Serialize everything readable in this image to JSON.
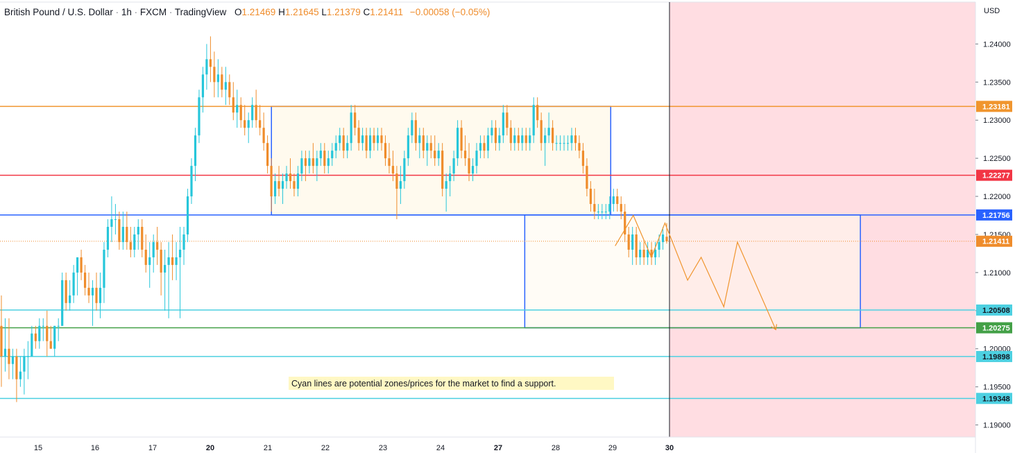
{
  "header": {
    "symbol": "British Pound / U.S. Dollar",
    "interval": "1h",
    "exchange": "FXCM",
    "platform": "TradingView",
    "open_label": "O",
    "open": "1.21469",
    "high_label": "H",
    "high": "1.21645",
    "low_label": "L",
    "low": "1.21379",
    "close_label": "C",
    "close": "1.21411",
    "change": "−0.00058 (−0.05%)"
  },
  "annotation": "Cyan lines are potential zones/prices for the market to find a support.",
  "colors": {
    "up": "#26c6da",
    "down": "#ef8c2b",
    "orange_level": "#f0952e",
    "red_level": "#f23645",
    "blue_level": "#2962ff",
    "cyan_level": "#4dd0e1",
    "green_level": "#43a047",
    "future_zone": "#ffdde2",
    "box_fill": "#fffaee"
  },
  "chart_data": {
    "type": "candlestick",
    "title": "British Pound / U.S. Dollar · 1h · FXCM",
    "currency": "USD",
    "ylim": [
      1.1875,
      1.2455
    ],
    "y_ticks": [
      "1.24000",
      "1.23500",
      "1.23000",
      "1.22500",
      "1.22000",
      "1.21500",
      "1.21000",
      "1.20500",
      "1.20000",
      "1.19500",
      "1.19000"
    ],
    "x_ticks": [
      {
        "label": "15",
        "bold": false
      },
      {
        "label": "16",
        "bold": false
      },
      {
        "label": "17",
        "bold": false
      },
      {
        "label": "20",
        "bold": true
      },
      {
        "label": "21",
        "bold": false
      },
      {
        "label": "22",
        "bold": false
      },
      {
        "label": "23",
        "bold": false
      },
      {
        "label": "24",
        "bold": false
      },
      {
        "label": "27",
        "bold": true
      },
      {
        "label": "28",
        "bold": false
      },
      {
        "label": "29",
        "bold": false
      },
      {
        "label": "30",
        "bold": true
      }
    ],
    "levels": [
      {
        "price": 1.23181,
        "label": "1.23181",
        "kind": "orange"
      },
      {
        "price": 1.22277,
        "label": "1.22277",
        "kind": "red"
      },
      {
        "price": 1.21756,
        "label": "1.21756",
        "kind": "blue"
      },
      {
        "price": 1.21411,
        "label": "1.21411",
        "kind": "current"
      },
      {
        "price": 1.20508,
        "label": "1.20508",
        "kind": "cyan"
      },
      {
        "price": 1.20275,
        "label": "1.20275",
        "kind": "green"
      },
      {
        "price": 1.19898,
        "label": "1.19898",
        "kind": "cyan"
      },
      {
        "price": 1.19348,
        "label": "1.19348",
        "kind": "cyan"
      }
    ],
    "candles": [
      [
        1.203,
        1.207,
        1.195,
        1.199
      ],
      [
        1.199,
        1.204,
        1.197,
        1.2
      ],
      [
        1.2,
        1.204,
        1.196,
        1.198
      ],
      [
        1.198,
        1.2,
        1.196,
        1.199
      ],
      [
        1.199,
        1.2,
        1.193,
        1.196
      ],
      [
        1.196,
        1.199,
        1.195,
        1.197
      ],
      [
        1.197,
        1.2,
        1.194,
        1.199
      ],
      [
        1.199,
        1.201,
        1.196,
        1.199
      ],
      [
        1.199,
        1.203,
        1.199,
        1.202
      ],
      [
        1.202,
        1.203,
        1.2,
        1.201
      ],
      [
        1.201,
        1.204,
        1.2,
        1.203
      ],
      [
        1.203,
        1.204,
        1.201,
        1.203
      ],
      [
        1.203,
        1.205,
        1.199,
        1.201
      ],
      [
        1.201,
        1.203,
        1.2,
        1.2
      ],
      [
        1.2,
        1.203,
        1.199,
        1.203
      ],
      [
        1.203,
        1.204,
        1.201,
        1.203
      ],
      [
        1.203,
        1.21,
        1.203,
        1.209
      ],
      [
        1.209,
        1.21,
        1.205,
        1.206
      ],
      [
        1.206,
        1.209,
        1.205,
        1.207
      ],
      [
        1.207,
        1.211,
        1.206,
        1.21
      ],
      [
        1.21,
        1.212,
        1.207,
        1.212
      ],
      [
        1.212,
        1.213,
        1.209,
        1.21
      ],
      [
        1.21,
        1.211,
        1.207,
        1.208
      ],
      [
        1.208,
        1.21,
        1.206,
        1.207
      ],
      [
        1.207,
        1.209,
        1.203,
        1.208
      ],
      [
        1.208,
        1.21,
        1.205,
        1.206
      ],
      [
        1.206,
        1.21,
        1.204,
        1.208
      ],
      [
        1.208,
        1.214,
        1.206,
        1.213
      ],
      [
        1.213,
        1.217,
        1.212,
        1.216
      ],
      [
        1.216,
        1.22,
        1.214,
        1.217
      ],
      [
        1.217,
        1.219,
        1.215,
        1.217
      ],
      [
        1.217,
        1.218,
        1.213,
        1.214
      ],
      [
        1.214,
        1.218,
        1.213,
        1.216
      ],
      [
        1.216,
        1.218,
        1.213,
        1.214
      ],
      [
        1.214,
        1.216,
        1.212,
        1.213
      ],
      [
        1.213,
        1.216,
        1.212,
        1.215
      ],
      [
        1.215,
        1.217,
        1.213,
        1.216
      ],
      [
        1.216,
        1.217,
        1.212,
        1.213
      ],
      [
        1.213,
        1.215,
        1.21,
        1.211
      ],
      [
        1.211,
        1.214,
        1.208,
        1.212
      ],
      [
        1.212,
        1.215,
        1.21,
        1.214
      ],
      [
        1.214,
        1.216,
        1.211,
        1.213
      ],
      [
        1.213,
        1.214,
        1.207,
        1.21
      ],
      [
        1.21,
        1.213,
        1.205,
        1.211
      ],
      [
        1.211,
        1.214,
        1.204,
        1.212
      ],
      [
        1.212,
        1.215,
        1.209,
        1.211
      ],
      [
        1.211,
        1.214,
        1.209,
        1.212
      ],
      [
        1.212,
        1.216,
        1.204,
        1.213
      ],
      [
        1.213,
        1.216,
        1.211,
        1.215
      ],
      [
        1.215,
        1.221,
        1.214,
        1.22
      ],
      [
        1.22,
        1.225,
        1.219,
        1.224
      ],
      [
        1.224,
        1.229,
        1.222,
        1.228
      ],
      [
        1.228,
        1.234,
        1.227,
        1.233
      ],
      [
        1.233,
        1.237,
        1.231,
        1.236
      ],
      [
        1.236,
        1.24,
        1.234,
        1.238
      ],
      [
        1.238,
        1.241,
        1.235,
        1.237
      ],
      [
        1.237,
        1.239,
        1.233,
        1.235
      ],
      [
        1.235,
        1.238,
        1.233,
        1.236
      ],
      [
        1.236,
        1.237,
        1.233,
        1.234
      ],
      [
        1.234,
        1.237,
        1.232,
        1.235
      ],
      [
        1.235,
        1.236,
        1.232,
        1.233
      ],
      [
        1.233,
        1.235,
        1.23,
        1.231
      ],
      [
        1.231,
        1.234,
        1.229,
        1.232
      ],
      [
        1.232,
        1.233,
        1.229,
        1.23
      ],
      [
        1.23,
        1.232,
        1.228,
        1.229
      ],
      [
        1.229,
        1.231,
        1.227,
        1.23
      ],
      [
        1.23,
        1.233,
        1.229,
        1.232
      ],
      [
        1.232,
        1.234,
        1.229,
        1.23
      ],
      [
        1.23,
        1.232,
        1.228,
        1.229
      ],
      [
        1.229,
        1.231,
        1.226,
        1.227
      ],
      [
        1.227,
        1.228,
        1.223,
        1.224
      ],
      [
        1.224,
        1.225,
        1.218,
        1.22
      ],
      [
        1.22,
        1.223,
        1.219,
        1.222
      ],
      [
        1.222,
        1.224,
        1.22,
        1.221
      ],
      [
        1.221,
        1.223,
        1.219,
        1.222
      ],
      [
        1.222,
        1.224,
        1.221,
        1.223
      ],
      [
        1.223,
        1.225,
        1.221,
        1.222
      ],
      [
        1.222,
        1.223,
        1.22,
        1.221
      ],
      [
        1.221,
        1.224,
        1.22,
        1.223
      ],
      [
        1.223,
        1.226,
        1.222,
        1.225
      ],
      [
        1.225,
        1.226,
        1.222,
        1.224
      ],
      [
        1.224,
        1.226,
        1.223,
        1.225
      ],
      [
        1.225,
        1.227,
        1.223,
        1.224
      ],
      [
        1.224,
        1.226,
        1.222,
        1.225
      ],
      [
        1.225,
        1.227,
        1.224,
        1.226
      ],
      [
        1.226,
        1.227,
        1.223,
        1.224
      ],
      [
        1.224,
        1.226,
        1.223,
        1.225
      ],
      [
        1.225,
        1.227,
        1.224,
        1.226
      ],
      [
        1.226,
        1.228,
        1.225,
        1.227
      ],
      [
        1.227,
        1.229,
        1.226,
        1.228
      ],
      [
        1.228,
        1.229,
        1.225,
        1.226
      ],
      [
        1.226,
        1.228,
        1.225,
        1.227
      ],
      [
        1.227,
        1.232,
        1.226,
        1.231
      ],
      [
        1.231,
        1.232,
        1.228,
        1.229
      ],
      [
        1.229,
        1.23,
        1.226,
        1.227
      ],
      [
        1.227,
        1.229,
        1.226,
        1.228
      ],
      [
        1.228,
        1.229,
        1.225,
        1.226
      ],
      [
        1.226,
        1.229,
        1.225,
        1.228
      ],
      [
        1.228,
        1.229,
        1.226,
        1.227
      ],
      [
        1.227,
        1.229,
        1.226,
        1.228
      ],
      [
        1.228,
        1.229,
        1.226,
        1.227
      ],
      [
        1.227,
        1.228,
        1.224,
        1.225
      ],
      [
        1.225,
        1.227,
        1.223,
        1.224
      ],
      [
        1.224,
        1.226,
        1.222,
        1.223
      ],
      [
        1.223,
        1.224,
        1.217,
        1.221
      ],
      [
        1.221,
        1.224,
        1.219,
        1.222
      ],
      [
        1.222,
        1.226,
        1.221,
        1.225
      ],
      [
        1.225,
        1.229,
        1.224,
        1.228
      ],
      [
        1.228,
        1.231,
        1.227,
        1.23
      ],
      [
        1.23,
        1.231,
        1.226,
        1.227
      ],
      [
        1.227,
        1.229,
        1.225,
        1.228
      ],
      [
        1.228,
        1.229,
        1.225,
        1.226
      ],
      [
        1.226,
        1.228,
        1.224,
        1.227
      ],
      [
        1.227,
        1.228,
        1.225,
        1.226
      ],
      [
        1.226,
        1.228,
        1.224,
        1.225
      ],
      [
        1.225,
        1.227,
        1.224,
        1.226
      ],
      [
        1.226,
        1.227,
        1.22,
        1.221
      ],
      [
        1.221,
        1.223,
        1.218,
        1.222
      ],
      [
        1.222,
        1.224,
        1.22,
        1.223
      ],
      [
        1.223,
        1.226,
        1.222,
        1.225
      ],
      [
        1.225,
        1.23,
        1.224,
        1.229
      ],
      [
        1.229,
        1.23,
        1.225,
        1.226
      ],
      [
        1.226,
        1.228,
        1.224,
        1.225
      ],
      [
        1.225,
        1.227,
        1.222,
        1.223
      ],
      [
        1.223,
        1.225,
        1.222,
        1.224
      ],
      [
        1.224,
        1.227,
        1.223,
        1.226
      ],
      [
        1.226,
        1.228,
        1.225,
        1.227
      ],
      [
        1.227,
        1.228,
        1.225,
        1.226
      ],
      [
        1.226,
        1.229,
        1.225,
        1.228
      ],
      [
        1.228,
        1.23,
        1.227,
        1.229
      ],
      [
        1.229,
        1.23,
        1.226,
        1.227
      ],
      [
        1.227,
        1.229,
        1.226,
        1.228
      ],
      [
        1.228,
        1.232,
        1.227,
        1.231
      ],
      [
        1.231,
        1.232,
        1.228,
        1.229
      ],
      [
        1.229,
        1.23,
        1.226,
        1.227
      ],
      [
        1.227,
        1.229,
        1.226,
        1.228
      ],
      [
        1.228,
        1.229,
        1.226,
        1.227
      ],
      [
        1.227,
        1.229,
        1.226,
        1.228
      ],
      [
        1.228,
        1.229,
        1.226,
        1.227
      ],
      [
        1.227,
        1.229,
        1.226,
        1.228
      ],
      [
        1.228,
        1.233,
        1.227,
        1.232
      ],
      [
        1.232,
        1.233,
        1.229,
        1.23
      ],
      [
        1.23,
        1.231,
        1.226,
        1.227
      ],
      [
        1.227,
        1.229,
        1.224,
        1.228
      ],
      [
        1.228,
        1.231,
        1.227,
        1.229
      ],
      [
        1.229,
        1.23,
        1.226,
        1.227
      ],
      [
        1.227,
        1.228,
        1.226,
        1.227
      ],
      [
        1.227,
        1.228,
        1.226,
        1.227
      ],
      [
        1.227,
        1.228,
        1.226,
        1.227
      ],
      [
        1.227,
        1.228,
        1.226,
        1.227
      ],
      [
        1.227,
        1.229,
        1.226,
        1.228
      ],
      [
        1.228,
        1.229,
        1.226,
        1.227
      ],
      [
        1.227,
        1.228,
        1.225,
        1.226
      ],
      [
        1.226,
        1.227,
        1.223,
        1.224
      ],
      [
        1.224,
        1.225,
        1.22,
        1.221
      ],
      [
        1.221,
        1.222,
        1.218,
        1.219
      ],
      [
        1.219,
        1.221,
        1.217,
        1.218
      ],
      [
        1.218,
        1.219,
        1.217,
        1.218
      ],
      [
        1.218,
        1.219,
        1.217,
        1.218
      ],
      [
        1.218,
        1.219,
        1.217,
        1.218
      ],
      [
        1.218,
        1.22,
        1.217,
        1.219
      ],
      [
        1.219,
        1.221,
        1.218,
        1.22
      ],
      [
        1.22,
        1.221,
        1.218,
        1.219
      ],
      [
        1.219,
        1.22,
        1.217,
        1.218
      ],
      [
        1.218,
        1.219,
        1.214,
        1.215
      ],
      [
        1.215,
        1.216,
        1.212,
        1.213
      ],
      [
        1.213,
        1.216,
        1.211,
        1.215
      ],
      [
        1.215,
        1.216,
        1.211,
        1.212
      ],
      [
        1.212,
        1.214,
        1.211,
        1.213
      ],
      [
        1.213,
        1.214,
        1.211,
        1.212
      ],
      [
        1.212,
        1.214,
        1.211,
        1.213
      ],
      [
        1.213,
        1.214,
        1.211,
        1.212
      ],
      [
        1.212,
        1.214,
        1.211,
        1.213
      ],
      [
        1.213,
        1.215,
        1.212,
        1.214
      ],
      [
        1.214,
        1.216,
        1.213,
        1.215
      ],
      [
        1.2147,
        1.2165,
        1.2138,
        1.2141
      ]
    ],
    "zones": [
      {
        "name": "range-box",
        "x0": 0.4054,
        "x1": 0.9122,
        "y_top": 1.23181,
        "y_bottom": 1.21756
      },
      {
        "name": "target-box",
        "x0": 0.7838,
        "x1": 1.2851,
        "y_top": 1.21756,
        "y_bottom": 1.20275
      }
    ],
    "projection": [
      [
        0.9189,
        1.2135
      ],
      [
        0.9459,
        1.2175
      ],
      [
        0.973,
        1.212
      ],
      [
        0.9932,
        1.2165
      ],
      [
        1.027,
        1.209
      ],
      [
        1.0473,
        1.212
      ],
      [
        1.0811,
        1.2055
      ],
      [
        1.1014,
        1.214
      ],
      [
        1.1588,
        1.2025
      ]
    ]
  }
}
